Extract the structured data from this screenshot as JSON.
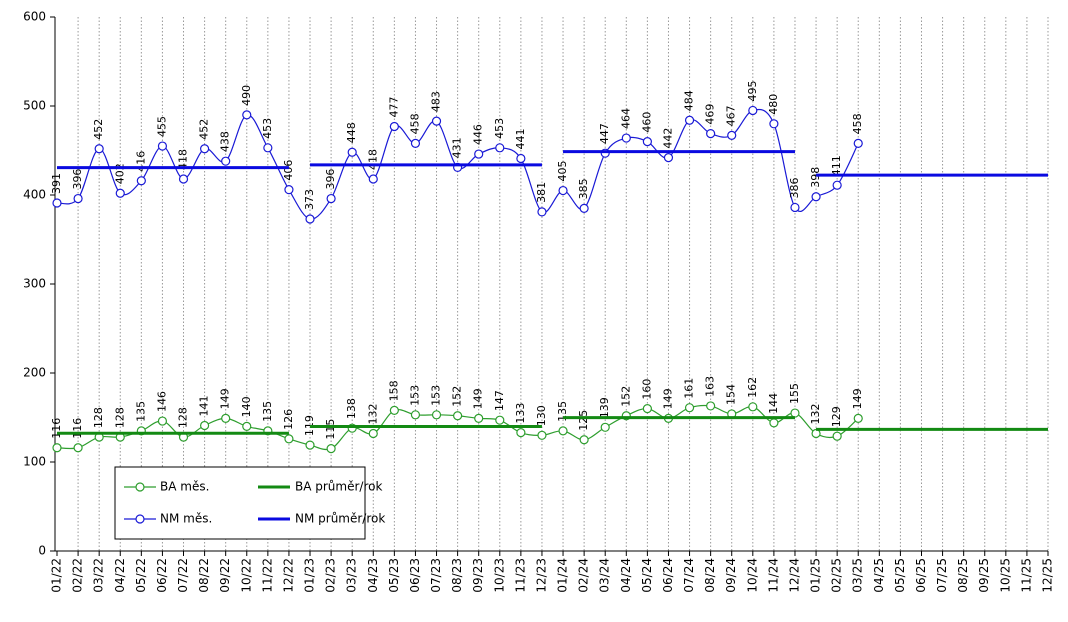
{
  "chart_data": {
    "type": "line",
    "categories": [
      "01/22",
      "02/22",
      "03/22",
      "04/22",
      "05/22",
      "06/22",
      "07/22",
      "08/22",
      "09/22",
      "10/22",
      "11/22",
      "12/22",
      "01/23",
      "02/23",
      "03/23",
      "04/23",
      "05/23",
      "06/23",
      "07/23",
      "08/23",
      "09/23",
      "10/23",
      "11/23",
      "12/23",
      "01/24",
      "02/24",
      "03/24",
      "04/24",
      "05/24",
      "06/24",
      "07/24",
      "08/24",
      "09/24",
      "10/24",
      "11/24",
      "12/24",
      "01/25",
      "02/25",
      "03/25",
      "04/25",
      "05/25",
      "06/25",
      "07/25",
      "08/25",
      "09/25",
      "10/25",
      "11/25",
      "12/25"
    ],
    "series": [
      {
        "name": "BA měs.",
        "color": "#2e9e2e",
        "markers": true,
        "labels": true,
        "values": [
          116,
          116,
          128,
          128,
          135,
          146,
          128,
          141,
          149,
          140,
          135,
          126,
          119,
          115,
          138,
          132,
          158,
          153,
          153,
          152,
          149,
          147,
          133,
          130,
          135,
          125,
          139,
          152,
          160,
          149,
          161,
          163,
          154,
          162,
          144,
          155,
          132,
          129,
          149,
          null,
          null,
          null,
          null,
          null,
          null,
          null,
          null,
          null
        ]
      },
      {
        "name": "BA průměr/rok",
        "color": "#138a13",
        "markers": false,
        "labels": false,
        "values": [
          132.3,
          132.3,
          132.3,
          132.3,
          132.3,
          132.3,
          132.3,
          132.3,
          132.3,
          132.3,
          132.3,
          132.3,
          139.9,
          139.9,
          139.9,
          139.9,
          139.9,
          139.9,
          139.9,
          139.9,
          139.9,
          139.9,
          139.9,
          139.9,
          149.9,
          149.9,
          149.9,
          149.9,
          149.9,
          149.9,
          149.9,
          149.9,
          149.9,
          149.9,
          149.9,
          149.9,
          136.7,
          136.7,
          136.7,
          136.7,
          136.7,
          136.7,
          136.7,
          136.7,
          136.7,
          136.7,
          136.7,
          136.7
        ]
      },
      {
        "name": "NM měs.",
        "color": "#1a1ad6",
        "markers": true,
        "labels": true,
        "values": [
          391,
          396,
          452,
          402,
          416,
          455,
          418,
          452,
          438,
          490,
          453,
          406,
          373,
          396,
          448,
          418,
          477,
          458,
          483,
          431,
          446,
          453,
          441,
          381,
          405,
          385,
          447,
          464,
          460,
          442,
          484,
          469,
          467,
          495,
          480,
          386,
          398,
          411,
          458,
          null,
          null,
          null,
          null,
          null,
          null,
          null,
          null,
          null
        ]
      },
      {
        "name": "NM průměr/rok",
        "color": "#0a0ae0",
        "markers": false,
        "labels": false,
        "values": [
          430.8,
          430.8,
          430.8,
          430.8,
          430.8,
          430.8,
          430.8,
          430.8,
          430.8,
          430.8,
          430.8,
          430.8,
          433.8,
          433.8,
          433.8,
          433.8,
          433.8,
          433.8,
          433.8,
          433.8,
          433.8,
          433.8,
          433.8,
          433.8,
          448.7,
          448.7,
          448.7,
          448.7,
          448.7,
          448.7,
          448.7,
          448.7,
          448.7,
          448.7,
          448.7,
          448.7,
          422.3,
          422.3,
          422.3,
          422.3,
          422.3,
          422.3,
          422.3,
          422.3,
          422.3,
          422.3,
          422.3,
          422.3
        ]
      }
    ],
    "ylim": [
      0,
      600
    ],
    "yticks": [
      0,
      100,
      200,
      300,
      400,
      500,
      600
    ],
    "grid": "x"
  }
}
